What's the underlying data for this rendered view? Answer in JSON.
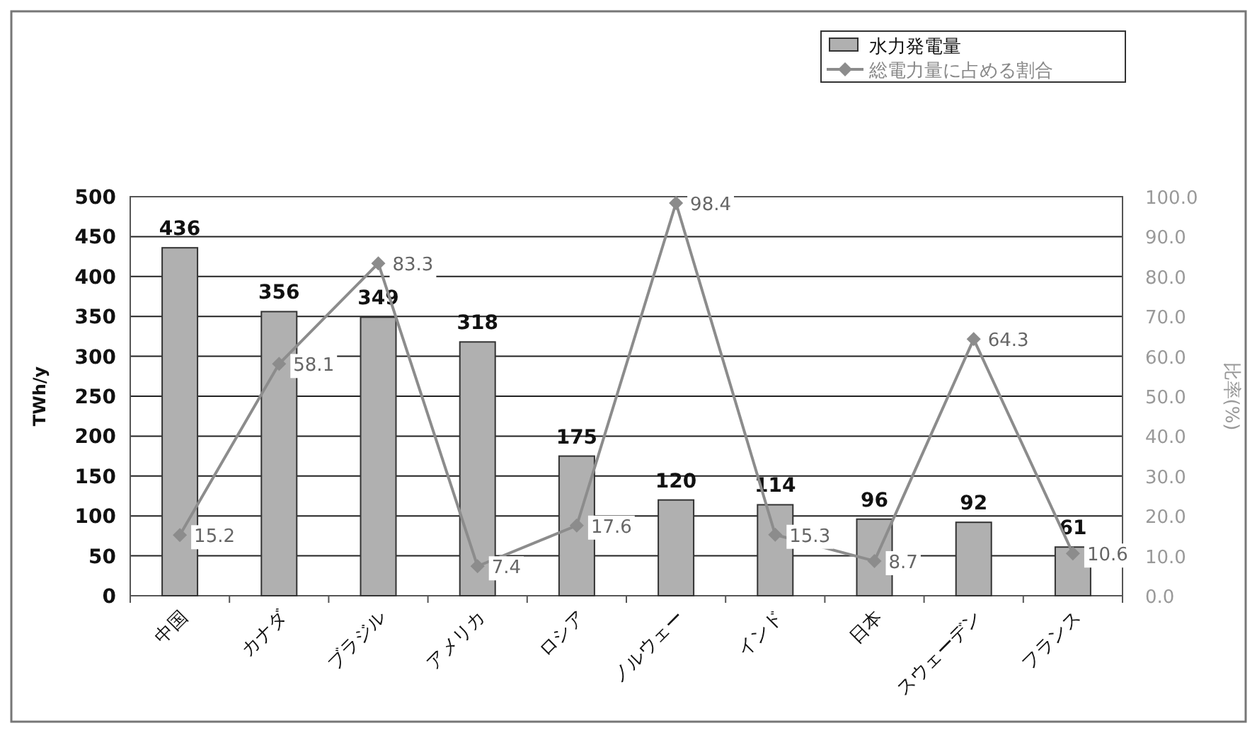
{
  "chart_data": {
    "type": "bar",
    "categories": [
      "中国",
      "カナダ",
      "ブラジル",
      "アメリカ",
      "ロシア",
      "ノルウェー",
      "インド",
      "日本",
      "スウェーデン",
      "フランス"
    ],
    "series": [
      {
        "name": "水力発電量",
        "color": "#b0b0b0",
        "values": [
          436,
          356,
          349,
          318,
          175,
          120,
          114,
          96,
          92,
          61
        ]
      },
      {
        "name": "総電力量に占める割合",
        "type": "line",
        "axis": "y2",
        "color": "#8c8c8c",
        "values": [
          15.2,
          58.1,
          83.3,
          7.4,
          17.6,
          98.4,
          15.3,
          8.7,
          64.3,
          10.6
        ]
      }
    ],
    "ylabel": "TWh/y",
    "y2label": "比率(%)",
    "ylim": [
      0,
      500
    ],
    "yticks": [
      0,
      50,
      100,
      150,
      200,
      250,
      300,
      350,
      400,
      450,
      500
    ],
    "y2lim": [
      0,
      100
    ],
    "y2ticks": [
      {
        "value": 0,
        "label": "0.0"
      },
      {
        "value": 10,
        "label": "10.0"
      },
      {
        "value": 20,
        "label": "20.0"
      },
      {
        "value": 30,
        "label": "30.0"
      },
      {
        "value": 40,
        "label": "40.0"
      },
      {
        "value": 50,
        "label": "50.0"
      },
      {
        "value": 60,
        "label": "60.0"
      },
      {
        "value": 70,
        "label": "70.0"
      },
      {
        "value": 80,
        "label": "80.0"
      },
      {
        "value": 90,
        "label": "90.0"
      },
      {
        "value": 100,
        "label": "100.0"
      }
    ],
    "grid": "y",
    "legend": "top right",
    "marker": "diamond",
    "line_style": "solid",
    "data_labels": true
  }
}
